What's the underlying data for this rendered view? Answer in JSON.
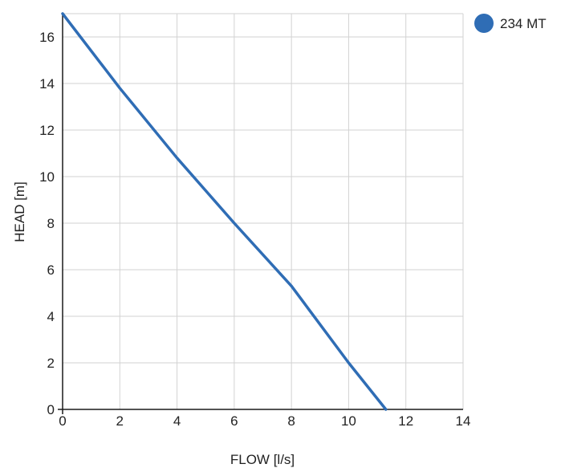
{
  "chart_data": {
    "type": "line",
    "title": "",
    "xlabel": "FLOW [l/s]",
    "ylabel": "HEAD [m]",
    "xlim": [
      0,
      14
    ],
    "ylim": [
      0,
      17
    ],
    "x_ticks": [
      0,
      2,
      4,
      6,
      8,
      10,
      12,
      14
    ],
    "y_ticks": [
      0,
      2,
      4,
      6,
      8,
      10,
      12,
      14,
      16
    ],
    "grid": true,
    "legend_position": "top-right",
    "series": [
      {
        "name": "234 MT",
        "color": "#2f6db5",
        "x": [
          0,
          2,
          4,
          6,
          8,
          10,
          11.3
        ],
        "y": [
          17,
          13.8,
          10.8,
          8.0,
          5.3,
          2.0,
          0
        ]
      }
    ]
  }
}
